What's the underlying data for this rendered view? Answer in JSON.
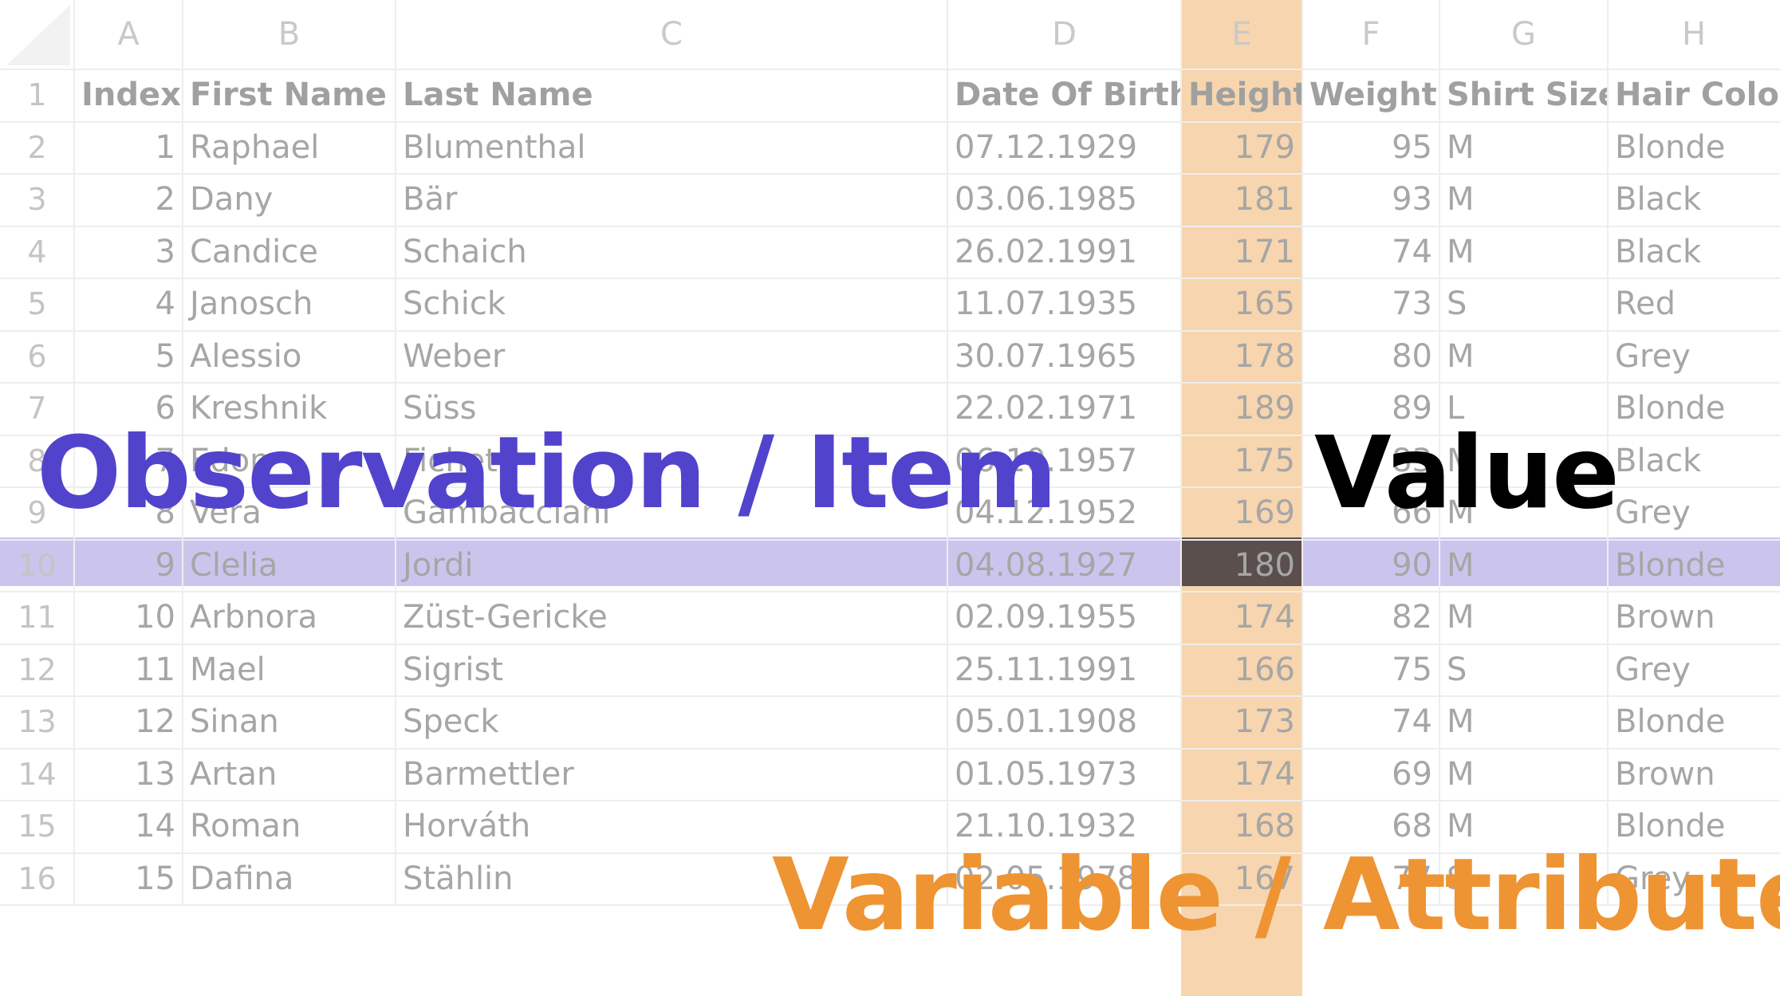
{
  "spreadsheet": {
    "columns": [
      "A",
      "B",
      "C",
      "D",
      "E",
      "F",
      "G",
      "H"
    ],
    "row_numbers": [
      "1",
      "2",
      "3",
      "4",
      "5",
      "6",
      "7",
      "8",
      "9",
      "10",
      "11",
      "12",
      "13",
      "14",
      "15",
      "16"
    ],
    "header": [
      "Index",
      "First Name",
      "Last Name",
      "Date Of Birth",
      "Height",
      "Weight",
      "Shirt Size",
      "Hair Color"
    ],
    "rows": [
      [
        "1",
        "Raphael",
        "Blumenthal",
        "07.12.1929",
        "179",
        "95",
        "M",
        "Blonde"
      ],
      [
        "2",
        "Dany",
        "Bär",
        "03.06.1985",
        "181",
        "93",
        "M",
        "Black"
      ],
      [
        "3",
        "Candice",
        "Schaich",
        "26.02.1991",
        "171",
        "74",
        "M",
        "Black"
      ],
      [
        "4",
        "Janosch",
        "Schick",
        "11.07.1935",
        "165",
        "73",
        "S",
        "Red"
      ],
      [
        "5",
        "Alessio",
        "Weber",
        "30.07.1965",
        "178",
        "80",
        "M",
        "Grey"
      ],
      [
        "6",
        "Kreshnik",
        "Süss",
        "22.02.1971",
        "189",
        "89",
        "L",
        "Blonde"
      ],
      [
        "7",
        "Edon",
        "Fichet",
        "06.10.1957",
        "175",
        "83",
        "M",
        "Black"
      ],
      [
        "8",
        "Vera",
        "Gambacciani",
        "04.12.1952",
        "169",
        "66",
        "M",
        "Grey"
      ],
      [
        "9",
        "Clelia",
        "Jordi",
        "04.08.1927",
        "180",
        "90",
        "M",
        "Blonde"
      ],
      [
        "10",
        "Arbnora",
        "Züst-Gericke",
        "02.09.1955",
        "174",
        "82",
        "M",
        "Brown"
      ],
      [
        "11",
        "Mael",
        "Sigrist",
        "25.11.1991",
        "166",
        "75",
        "S",
        "Grey"
      ],
      [
        "12",
        "Sinan",
        "Speck",
        "05.01.1908",
        "173",
        "74",
        "M",
        "Blonde"
      ],
      [
        "13",
        "Artan",
        "Barmettler",
        "01.05.1973",
        "174",
        "69",
        "M",
        "Brown"
      ],
      [
        "14",
        "Roman",
        "Horváth",
        "21.10.1932",
        "168",
        "68",
        "M",
        "Blonde"
      ],
      [
        "15",
        "Dafina",
        "Stählin",
        "02.05.1978",
        "167",
        "77",
        "S",
        "Grey"
      ]
    ],
    "numeric_columns": [
      0,
      4,
      5
    ],
    "highlighted_column": "E",
    "highlighted_row": "10"
  },
  "labels": {
    "observation": "Observation / Item",
    "value": "Value",
    "variable": "Variable / Attribute"
  },
  "colors": {
    "observation": "#5243cc",
    "value": "#000000",
    "variable": "#ee9432",
    "column_highlight": "#f7d5ae",
    "row_highlight": "#cbc5ee",
    "value_cell_highlight": "#5a4f4d"
  }
}
